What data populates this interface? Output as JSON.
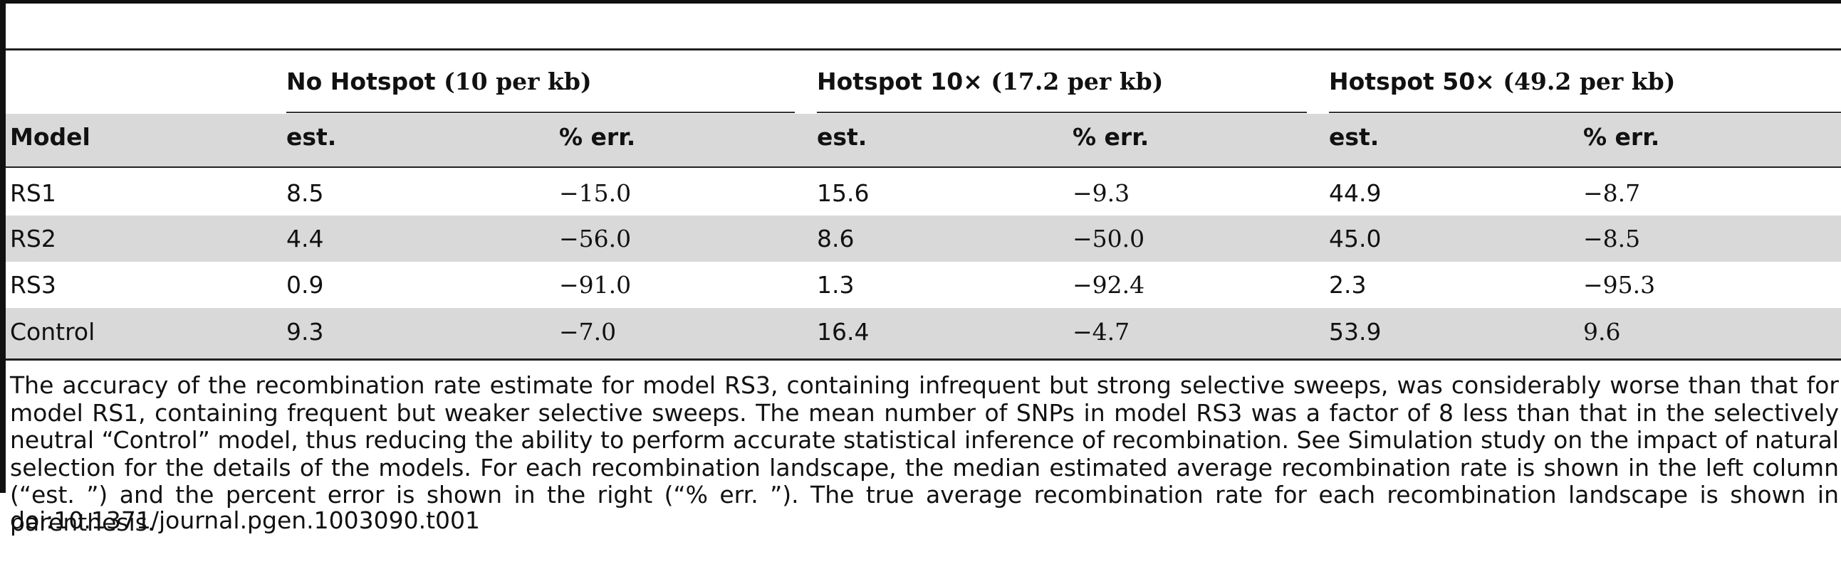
{
  "table": {
    "group_headers": [
      {
        "label": "No Hotspot",
        "rate": "(10 per kb)"
      },
      {
        "label": "Hotspot 10×",
        "rate": "(17.2 per kb)"
      },
      {
        "label": "Hotspot 50×",
        "rate": "(49.2 per kb)"
      }
    ],
    "column_headers": [
      "Model",
      "est.",
      "% err.",
      "est.",
      "% err.",
      "est.",
      "% err."
    ],
    "rows": [
      {
        "model": "RS1",
        "cells": [
          "8.5",
          "−15.0",
          "15.6",
          "−9.3",
          "44.9",
          "−8.7"
        ]
      },
      {
        "model": "RS2",
        "cells": [
          "4.4",
          "−56.0",
          "8.6",
          "−50.0",
          "45.0",
          "−8.5"
        ]
      },
      {
        "model": "RS3",
        "cells": [
          "0.9",
          "−91.0",
          "1.3",
          "−92.4",
          "2.3",
          "−95.3"
        ]
      },
      {
        "model": "Control",
        "cells": [
          "9.3",
          "−7.0",
          "16.4",
          "−4.7",
          "53.9",
          "9.6"
        ]
      }
    ]
  },
  "caption": "The accuracy of the recombination rate estimate for model RS3, containing infrequent but strong selective sweeps, was considerably worse than that for model RS1, containing frequent but weaker selective sweeps. The mean number of SNPs in model RS3 was a factor of 8 less than that in the selectively neutral “Control” model, thus reducing the ability to perform accurate statistical inference of recombination. See Simulation study on the impact of natural selection for the details of the models. For each recombination landscape, the median estimated average recombination rate is shown in the left column (“est. ”) and the percent error is shown in the right (“% err. ”). The true average recombination rate for each recombination landscape is shown in parenthesis.",
  "doi": "doi:10.1371/journal.pgen.1003090.t001"
}
